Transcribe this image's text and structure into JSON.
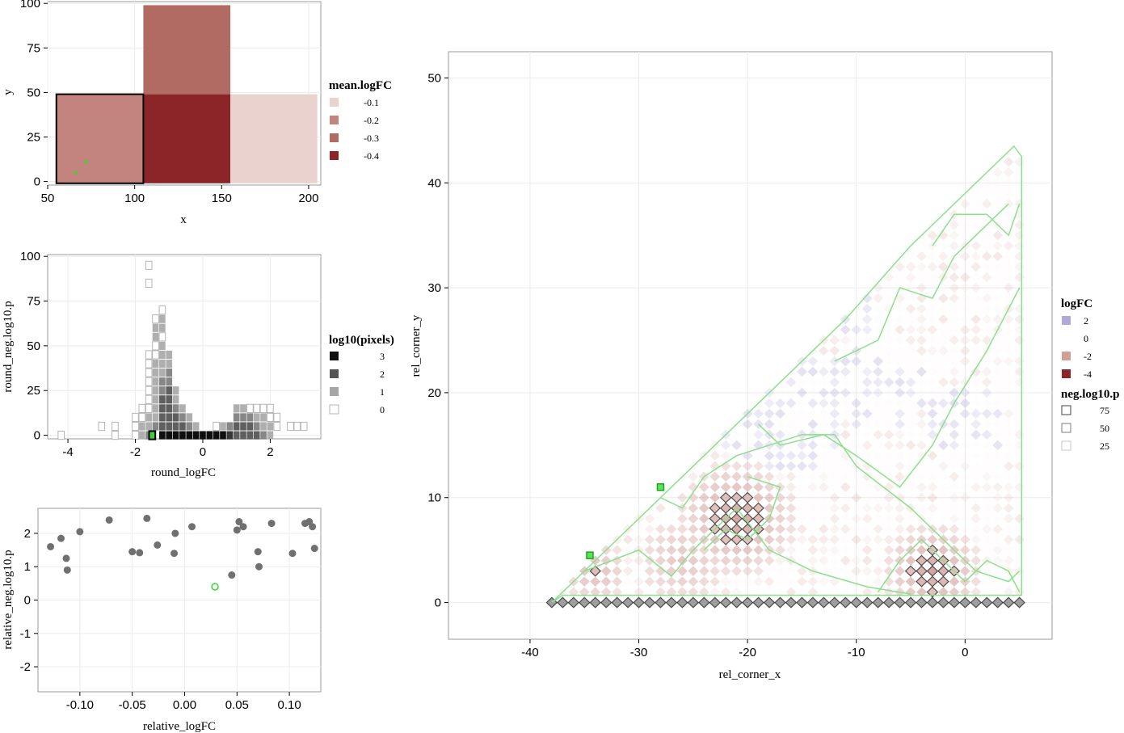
{
  "chart_data": [
    {
      "type": "heatmap",
      "xlabel": "x",
      "ylabel": "y",
      "xlim": [
        50,
        207
      ],
      "ylim": [
        -2,
        101
      ],
      "x_ticks": [
        "50",
        "100",
        "150",
        "200"
      ],
      "y_ticks": [
        "0",
        "25",
        "50",
        "75",
        "100"
      ],
      "legend": {
        "title": "mean.logFC",
        "labels": [
          "-0.1",
          "-0.2",
          "-0.3",
          "-0.4"
        ],
        "colors": [
          "#ead2cf",
          "#c2847c",
          "#b26b63",
          "#8b2528"
        ]
      },
      "tiles": [
        {
          "x0": 55,
          "x1": 105,
          "y0": -1,
          "y1": 49,
          "value": -0.2,
          "highlight": true
        },
        {
          "x0": 105,
          "x1": 155,
          "y0": -1,
          "y1": 49,
          "value": -0.4
        },
        {
          "x0": 105,
          "x1": 155,
          "y0": 49,
          "y1": 99,
          "value": -0.3
        },
        {
          "x0": 155,
          "x1": 205,
          "y0": -1,
          "y1": 49,
          "value": -0.1
        }
      ],
      "points": [
        {
          "x": 66,
          "y": 5
        },
        {
          "x": 72,
          "y": 11
        }
      ]
    },
    {
      "type": "heatmap",
      "xlabel": "round_logFC",
      "ylabel": "round_neg.log10.p",
      "xlim": [
        -4.6,
        3.5
      ],
      "ylim": [
        -2,
        101
      ],
      "x_ticks": [
        "-4",
        "-2",
        "0",
        "2"
      ],
      "y_ticks": [
        "0",
        "25",
        "50",
        "75",
        "100"
      ],
      "legend": {
        "title": "log10(pixels)",
        "labels": [
          "3",
          "2",
          "1",
          "0"
        ],
        "colors": [
          "#111111",
          "#555555",
          "#a6a6a6",
          "#ffffff"
        ]
      },
      "highlight": {
        "x": -1.5,
        "y": 0
      },
      "bins": [
        [
          -4.2,
          0,
          0
        ],
        [
          -3,
          5,
          0
        ],
        [
          -2.6,
          5,
          0
        ],
        [
          -2.6,
          0,
          0
        ],
        [
          -2,
          5,
          0
        ],
        [
          -2,
          0,
          0
        ],
        [
          -2,
          10,
          0
        ],
        [
          -1.8,
          0,
          1
        ],
        [
          -1.8,
          5,
          1
        ],
        [
          -1.8,
          10,
          0
        ],
        [
          -1.8,
          15,
          0
        ],
        [
          -1.6,
          0,
          1.5
        ],
        [
          -1.6,
          5,
          1
        ],
        [
          -1.6,
          10,
          1
        ],
        [
          -1.6,
          15,
          0
        ],
        [
          -1.6,
          20,
          0
        ],
        [
          -1.6,
          25,
          0
        ],
        [
          -1.6,
          30,
          0
        ],
        [
          -1.6,
          35,
          0
        ],
        [
          -1.6,
          40,
          0
        ],
        [
          -1.6,
          45,
          0
        ],
        [
          -1.6,
          85,
          0
        ],
        [
          -1.6,
          95,
          0
        ],
        [
          -1.5,
          0,
          2.5
        ],
        [
          -1.4,
          5,
          1.5
        ],
        [
          -1.4,
          10,
          1
        ],
        [
          -1.4,
          15,
          1
        ],
        [
          -1.4,
          20,
          1
        ],
        [
          -1.4,
          25,
          1
        ],
        [
          -1.4,
          30,
          1
        ],
        [
          -1.4,
          35,
          1
        ],
        [
          -1.4,
          40,
          1
        ],
        [
          -1.4,
          45,
          0
        ],
        [
          -1.4,
          50,
          0
        ],
        [
          -1.4,
          55,
          1
        ],
        [
          -1.4,
          60,
          1
        ],
        [
          -1.4,
          65,
          0
        ],
        [
          -1.2,
          0,
          3
        ],
        [
          -1.2,
          5,
          2
        ],
        [
          -1.2,
          10,
          2
        ],
        [
          -1.2,
          15,
          2
        ],
        [
          -1.2,
          20,
          2
        ],
        [
          -1.2,
          25,
          1.5
        ],
        [
          -1.2,
          30,
          1.5
        ],
        [
          -1.2,
          35,
          1
        ],
        [
          -1.2,
          40,
          1
        ],
        [
          -1.2,
          45,
          1
        ],
        [
          -1.2,
          50,
          1
        ],
        [
          -1.2,
          55,
          0
        ],
        [
          -1.2,
          60,
          1
        ],
        [
          -1.2,
          65,
          1
        ],
        [
          -1.2,
          70,
          0
        ],
        [
          -1,
          0,
          3
        ],
        [
          -1,
          5,
          2
        ],
        [
          -1,
          10,
          2
        ],
        [
          -1,
          15,
          2
        ],
        [
          -1,
          20,
          2
        ],
        [
          -1,
          25,
          2
        ],
        [
          -1,
          30,
          1.5
        ],
        [
          -1,
          35,
          1.5
        ],
        [
          -1,
          40,
          1
        ],
        [
          -1,
          45,
          1
        ],
        [
          -0.8,
          0,
          3
        ],
        [
          -0.8,
          5,
          2
        ],
        [
          -0.8,
          10,
          2
        ],
        [
          -0.8,
          15,
          1.5
        ],
        [
          -0.8,
          20,
          1
        ],
        [
          -0.8,
          25,
          1
        ],
        [
          -0.6,
          0,
          3
        ],
        [
          -0.6,
          5,
          2
        ],
        [
          -0.6,
          10,
          1.5
        ],
        [
          -0.6,
          15,
          1
        ],
        [
          -0.4,
          0,
          3
        ],
        [
          -0.4,
          5,
          1.5
        ],
        [
          -0.4,
          10,
          1
        ],
        [
          -0.2,
          0,
          3
        ],
        [
          -0.2,
          5,
          1
        ],
        [
          0,
          0,
          3
        ],
        [
          0.2,
          0,
          3
        ],
        [
          0.4,
          0,
          3
        ],
        [
          0.4,
          5,
          0
        ],
        [
          0.6,
          0,
          3
        ],
        [
          0.6,
          5,
          1
        ],
        [
          0.8,
          0,
          2.5
        ],
        [
          0.8,
          5,
          1.5
        ],
        [
          1,
          0,
          2
        ],
        [
          1,
          5,
          2
        ],
        [
          1,
          10,
          1.5
        ],
        [
          1,
          15,
          1
        ],
        [
          1.2,
          0,
          2
        ],
        [
          1.2,
          5,
          2
        ],
        [
          1.2,
          10,
          1.5
        ],
        [
          1.2,
          15,
          1
        ],
        [
          1.4,
          0,
          2
        ],
        [
          1.4,
          5,
          2
        ],
        [
          1.4,
          10,
          1.5
        ],
        [
          1.4,
          15,
          0
        ],
        [
          1.6,
          0,
          2
        ],
        [
          1.6,
          5,
          1.5
        ],
        [
          1.6,
          10,
          1
        ],
        [
          1.6,
          15,
          0
        ],
        [
          1.8,
          0,
          1.5
        ],
        [
          1.8,
          5,
          1
        ],
        [
          1.8,
          10,
          1
        ],
        [
          1.8,
          15,
          0
        ],
        [
          2,
          0,
          1
        ],
        [
          2,
          5,
          1
        ],
        [
          2,
          10,
          0
        ],
        [
          2,
          15,
          0
        ],
        [
          2.2,
          5,
          0
        ],
        [
          2.2,
          10,
          0
        ],
        [
          2.6,
          5,
          0
        ],
        [
          2.8,
          5,
          0
        ],
        [
          3,
          5,
          0
        ]
      ]
    },
    {
      "type": "scatter",
      "xlabel": "relative_logFC",
      "ylabel": "relative_neg.log10.p",
      "xlim": [
        -0.14,
        0.13
      ],
      "ylim": [
        -2.75,
        2.75
      ],
      "x_ticks": [
        "-0.10",
        "-0.05",
        "0.00",
        "0.05",
        "0.10"
      ],
      "y_ticks": [
        "-2",
        "-1",
        "0",
        "1",
        "2"
      ],
      "points": [
        [
          -0.128,
          1.6
        ],
        [
          -0.118,
          1.85
        ],
        [
          -0.113,
          1.25
        ],
        [
          -0.112,
          0.9
        ],
        [
          -0.1,
          2.05
        ],
        [
          -0.072,
          2.4
        ],
        [
          -0.05,
          1.45
        ],
        [
          -0.043,
          1.42
        ],
        [
          -0.036,
          2.45
        ],
        [
          -0.026,
          1.65
        ],
        [
          -0.01,
          1.4
        ],
        [
          -0.009,
          2.0
        ],
        [
          0.007,
          2.2
        ],
        [
          0.045,
          0.75
        ],
        [
          0.05,
          2.1
        ],
        [
          0.052,
          2.35
        ],
        [
          0.056,
          2.2
        ],
        [
          0.07,
          1.45
        ],
        [
          0.071,
          1.0
        ],
        [
          0.083,
          2.3
        ],
        [
          0.103,
          1.4
        ],
        [
          0.115,
          2.3
        ],
        [
          0.119,
          2.35
        ],
        [
          0.122,
          2.2
        ],
        [
          0.124,
          1.55
        ]
      ],
      "highlight": {
        "x": 0.029,
        "y": 0.4
      }
    },
    {
      "type": "heatmap",
      "xlabel": "rel_corner_x",
      "ylabel": "rel_corner_y",
      "xlim": [
        -47.5,
        8
      ],
      "ylim": [
        -3.5,
        52.5
      ],
      "x_ticks": [
        "-40",
        "-30",
        "-20",
        "-10",
        "0"
      ],
      "y_ticks": [
        "0",
        "10",
        "20",
        "30",
        "40",
        "50"
      ],
      "legend_logFC": {
        "title": "logFC",
        "labels": [
          "2",
          "0",
          "-2",
          "-4"
        ],
        "colors": [
          "#b3a9d8",
          "#ffffff",
          "#d19e98",
          "#8b2528"
        ]
      },
      "legend_p": {
        "title": "neg.log10.p",
        "labels": [
          "75",
          "50",
          "25"
        ]
      },
      "triangle": {
        "x_min": -38,
        "x_max": 5,
        "y_max": 43
      },
      "highlights": [
        {
          "x": -34.5,
          "y": 4.5
        },
        {
          "x": -28,
          "y": 11
        }
      ]
    }
  ]
}
